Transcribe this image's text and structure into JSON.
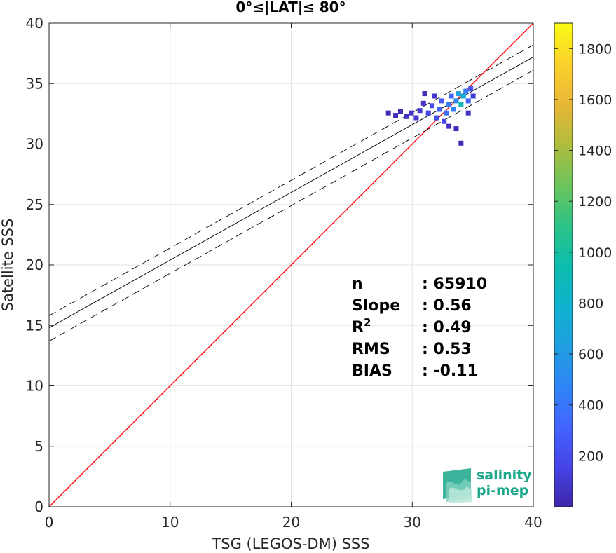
{
  "chart_data": {
    "type": "heatmap",
    "title": "0°≤|LAT|≤ 80°",
    "xlabel": "TSG (LEGOS-DM) SSS",
    "ylabel": "Satellite SSS",
    "xlim": [
      0,
      40
    ],
    "ylim": [
      0,
      40
    ],
    "xticks": [
      0,
      10,
      20,
      30,
      40
    ],
    "yticks": [
      0,
      5,
      10,
      15,
      20,
      25,
      30,
      35,
      40
    ],
    "grid": true,
    "colorbar": {
      "clim": [
        0,
        1900
      ],
      "ticks": [
        200,
        400,
        600,
        800,
        1000,
        1200,
        1400,
        1600,
        1800
      ],
      "colormap": "parula",
      "colors": [
        "#3e26a8",
        "#4744e8",
        "#4365fe",
        "#2f85f5",
        "#209fe0",
        "#0fb3ce",
        "#0dbdac",
        "#2dc386",
        "#6ec45b",
        "#b1bc3d",
        "#e9b737",
        "#fbd22c",
        "#f9fb15"
      ]
    },
    "lines": [
      {
        "name": "one-to-one",
        "color": "#ff0000",
        "style": "solid",
        "points": [
          [
            0,
            0
          ],
          [
            40,
            40
          ]
        ]
      },
      {
        "name": "regression",
        "color": "#000000",
        "style": "solid",
        "points": [
          [
            0,
            14.8
          ],
          [
            40,
            37.2
          ]
        ]
      },
      {
        "name": "upper-bound",
        "color": "#000000",
        "style": "dashed",
        "points": [
          [
            0,
            15.8
          ],
          [
            40,
            38.2
          ]
        ]
      },
      {
        "name": "lower-bound",
        "color": "#000000",
        "style": "dashed",
        "points": [
          [
            0,
            13.7
          ],
          [
            40,
            36.1
          ]
        ]
      }
    ],
    "density_cells": [
      {
        "x": 28.0,
        "y": 32.6,
        "count": 30
      },
      {
        "x": 28.6,
        "y": 32.4,
        "count": 40
      },
      {
        "x": 29.0,
        "y": 32.7,
        "count": 50
      },
      {
        "x": 29.5,
        "y": 32.3,
        "count": 60
      },
      {
        "x": 29.9,
        "y": 32.6,
        "count": 80
      },
      {
        "x": 30.3,
        "y": 32.2,
        "count": 90
      },
      {
        "x": 30.6,
        "y": 32.8,
        "count": 110
      },
      {
        "x": 30.9,
        "y": 33.4,
        "count": 80
      },
      {
        "x": 31.0,
        "y": 34.2,
        "count": 40
      },
      {
        "x": 31.3,
        "y": 32.6,
        "count": 160
      },
      {
        "x": 31.6,
        "y": 33.2,
        "count": 190
      },
      {
        "x": 31.8,
        "y": 34.0,
        "count": 90
      },
      {
        "x": 32.0,
        "y": 32.2,
        "count": 220
      },
      {
        "x": 32.2,
        "y": 32.9,
        "count": 300
      },
      {
        "x": 32.4,
        "y": 33.6,
        "count": 260
      },
      {
        "x": 32.6,
        "y": 31.9,
        "count": 150
      },
      {
        "x": 32.8,
        "y": 32.6,
        "count": 380
      },
      {
        "x": 33.0,
        "y": 33.3,
        "count": 420
      },
      {
        "x": 33.2,
        "y": 34.0,
        "count": 310
      },
      {
        "x": 33.4,
        "y": 32.9,
        "count": 460
      },
      {
        "x": 33.6,
        "y": 33.6,
        "count": 520
      },
      {
        "x": 33.8,
        "y": 34.2,
        "count": 640
      },
      {
        "x": 34.0,
        "y": 33.3,
        "count": 900
      },
      {
        "x": 34.2,
        "y": 34.0,
        "count": 720
      },
      {
        "x": 34.4,
        "y": 34.4,
        "count": 420
      },
      {
        "x": 34.6,
        "y": 33.6,
        "count": 300
      },
      {
        "x": 34.8,
        "y": 34.6,
        "count": 220
      },
      {
        "x": 35.0,
        "y": 34.0,
        "count": 120
      },
      {
        "x": 33.0,
        "y": 31.5,
        "count": 60
      },
      {
        "x": 33.6,
        "y": 31.3,
        "count": 40
      },
      {
        "x": 34.0,
        "y": 30.1,
        "count": 20
      },
      {
        "x": 34.6,
        "y": 32.6,
        "count": 70
      }
    ],
    "stats": [
      {
        "label": "n",
        "value": ": 65910"
      },
      {
        "label": "Slope",
        "value": ": 0.56"
      },
      {
        "label": "R",
        "sup": "2",
        "value": ": 0.49"
      },
      {
        "label": "RMS",
        "value": ": 0.53"
      },
      {
        "label": "BIAS",
        "value": ": -0.11"
      }
    ]
  },
  "logo": {
    "line1": "salinity",
    "line2": "pi-mep"
  }
}
